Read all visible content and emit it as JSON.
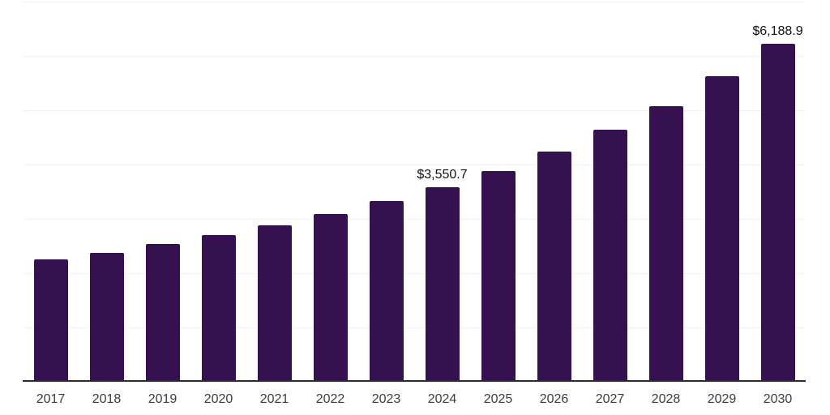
{
  "chart_data": {
    "type": "bar",
    "title": "",
    "xlabel": "",
    "ylabel": "",
    "categories": [
      "2017",
      "2018",
      "2019",
      "2020",
      "2021",
      "2022",
      "2023",
      "2024",
      "2025",
      "2026",
      "2027",
      "2028",
      "2029",
      "2030"
    ],
    "values": [
      2230,
      2340,
      2510,
      2670,
      2855,
      3060,
      3300,
      3550.7,
      3855,
      4210,
      4615,
      5050,
      5590,
      6188.9
    ],
    "data_labels": {
      "2024": "$3,550.7",
      "2030": "$6,188.9"
    },
    "ylim": [
      0,
      7000
    ],
    "gridline_values": [
      1000,
      2000,
      3000,
      4000,
      5000,
      6000,
      7000
    ],
    "y_axis_labels_visible": false,
    "grid": "horizontal",
    "legend": "none",
    "colors": {
      "bar": "#35114F",
      "gridline": "#F2F2F2",
      "axis": "#2B2B2B",
      "tick_label": "#3D3D3D",
      "data_label": "#111111",
      "background": "#FFFFFF"
    }
  }
}
